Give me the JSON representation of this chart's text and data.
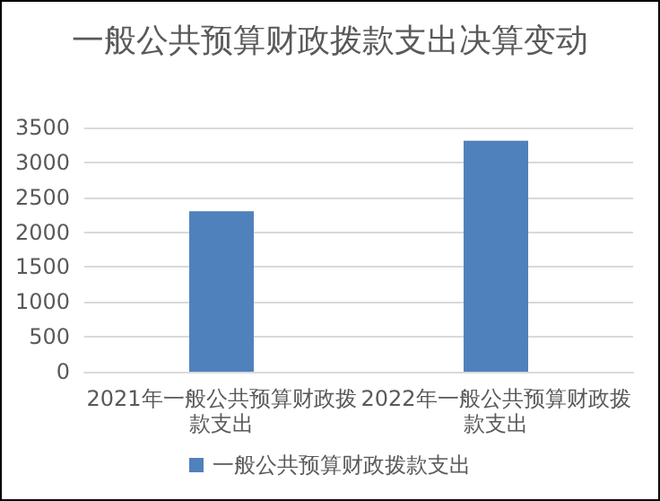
{
  "chart_data": {
    "type": "bar",
    "title": "一般公共预算财政拨款支出决算变动",
    "categories": [
      "2021年一般公共预算财政拨款支出",
      "2022年一般公共预算财政拨款支出"
    ],
    "series": [
      {
        "name": "一般公共预算财政拨款支出",
        "color": "#4f81bd",
        "values": [
          2300,
          3310
        ]
      }
    ],
    "ylim": [
      0,
      3500
    ],
    "yticks": [
      0,
      500,
      1000,
      1500,
      2000,
      2500,
      3000,
      3500
    ],
    "grid": "y",
    "legend": "bottom"
  }
}
